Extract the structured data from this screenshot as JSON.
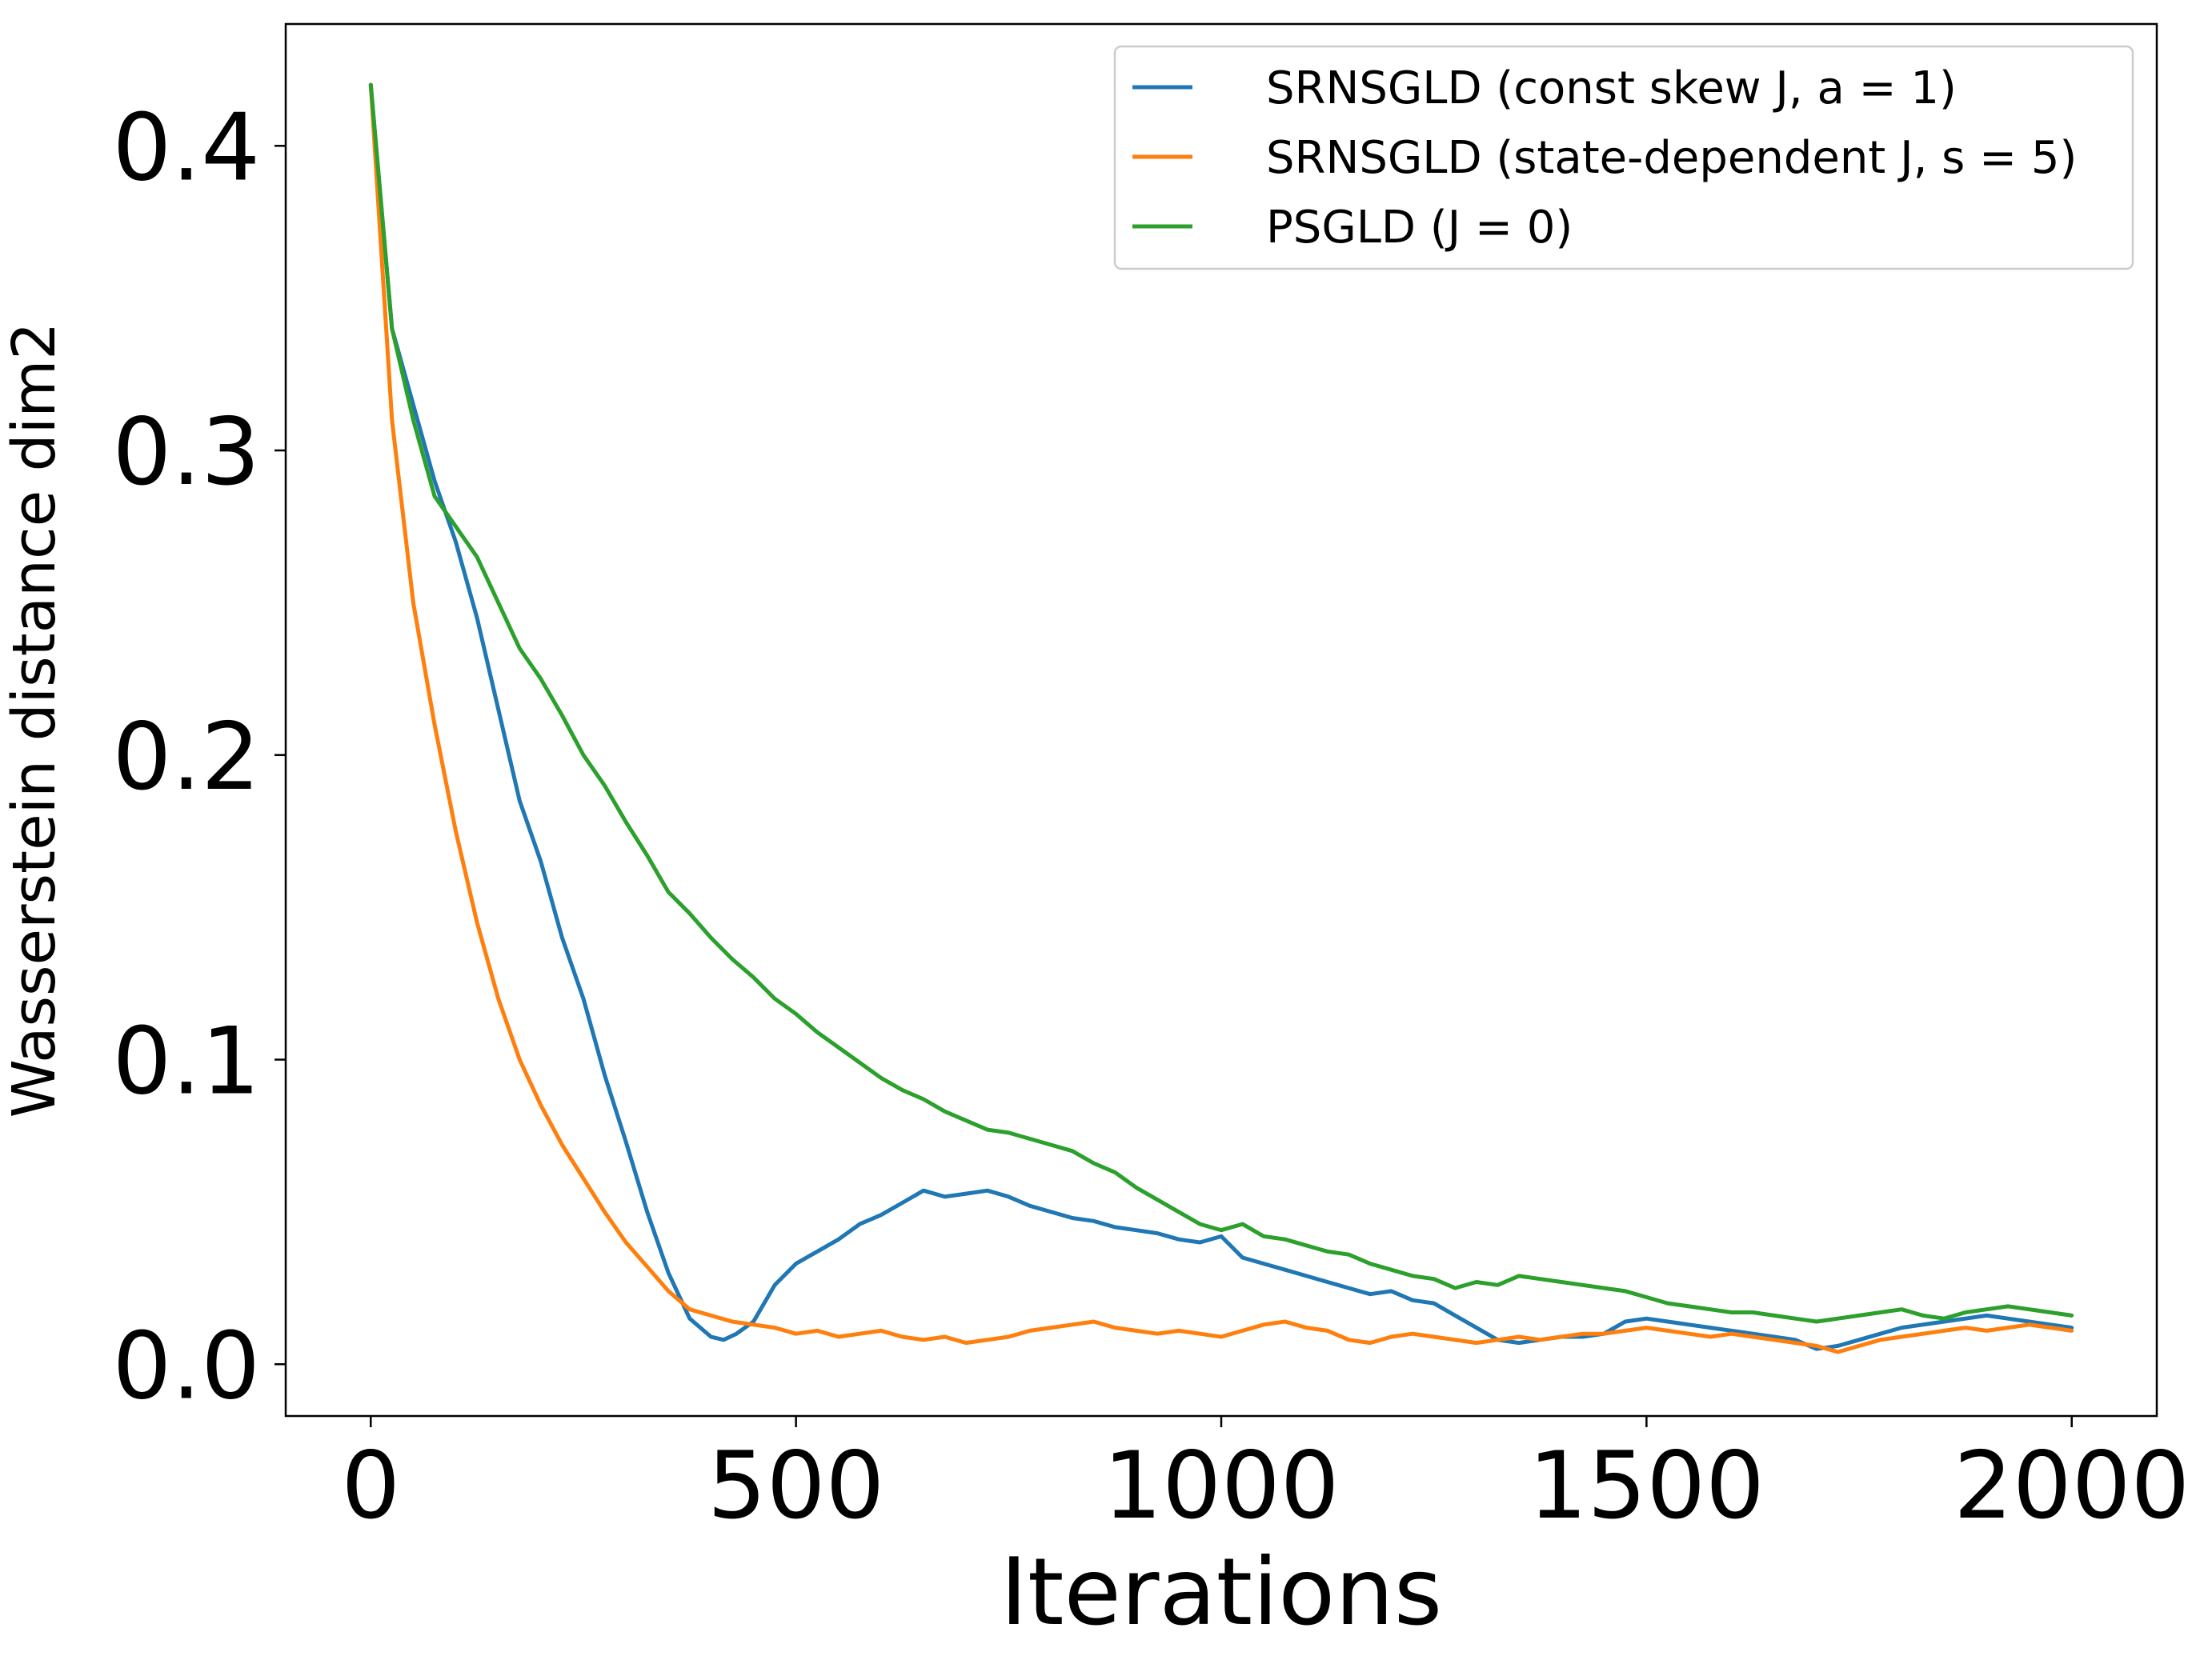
{
  "chart_data": {
    "type": "line",
    "title": "",
    "xlabel": "Iterations",
    "ylabel": "Wasserstein distance dim2",
    "xlim": [
      -100,
      2100
    ],
    "ylim": [
      -0.017,
      0.44
    ],
    "xticks": [
      0,
      500,
      1000,
      1500,
      2000
    ],
    "xtick_labels": [
      "0",
      "500",
      "1000",
      "1500",
      "2000"
    ],
    "yticks": [
      0.0,
      0.1,
      0.2,
      0.3,
      0.4
    ],
    "ytick_labels": [
      "0.0",
      "0.1",
      "0.2",
      "0.3",
      "0.4"
    ],
    "grid": false,
    "legend_position": "top-right",
    "series": [
      {
        "name": "SRNSGLD (const skew J, a = 1)",
        "color": "#1f77b4",
        "x": [
          0,
          25,
          50,
          75,
          100,
          125,
          150,
          175,
          200,
          225,
          250,
          275,
          300,
          325,
          350,
          375,
          400,
          415,
          430,
          450,
          475,
          500,
          525,
          550,
          575,
          600,
          625,
          650,
          675,
          700,
          725,
          750,
          775,
          800,
          825,
          850,
          875,
          900,
          925,
          950,
          975,
          1000,
          1025,
          1050,
          1075,
          1100,
          1125,
          1150,
          1175,
          1200,
          1225,
          1250,
          1275,
          1300,
          1325,
          1350,
          1375,
          1400,
          1425,
          1450,
          1475,
          1500,
          1525,
          1550,
          1575,
          1600,
          1625,
          1650,
          1675,
          1700,
          1725,
          1750,
          1775,
          1800,
          1825,
          1850,
          1875,
          1900,
          1925,
          1950,
          1975,
          2000
        ],
        "y": [
          0.42,
          0.34,
          0.315,
          0.29,
          0.27,
          0.245,
          0.215,
          0.185,
          0.165,
          0.14,
          0.12,
          0.095,
          0.073,
          0.05,
          0.03,
          0.015,
          0.009,
          0.008,
          0.01,
          0.014,
          0.026,
          0.033,
          0.037,
          0.041,
          0.046,
          0.049,
          0.053,
          0.057,
          0.055,
          0.056,
          0.057,
          0.055,
          0.052,
          0.05,
          0.048,
          0.047,
          0.045,
          0.044,
          0.043,
          0.041,
          0.04,
          0.042,
          0.035,
          0.033,
          0.031,
          0.029,
          0.027,
          0.025,
          0.023,
          0.024,
          0.021,
          0.02,
          0.016,
          0.012,
          0.008,
          0.007,
          0.008,
          0.009,
          0.009,
          0.01,
          0.014,
          0.015,
          0.014,
          0.013,
          0.012,
          0.011,
          0.01,
          0.009,
          0.008,
          0.005,
          0.006,
          0.008,
          0.01,
          0.012,
          0.013,
          0.014,
          0.015,
          0.016,
          0.015,
          0.014,
          0.013,
          0.012
        ]
      },
      {
        "name": "SRNSGLD (state-dependent J, s = 5)",
        "color": "#ff7f0e",
        "x": [
          0,
          25,
          50,
          75,
          100,
          125,
          150,
          175,
          200,
          225,
          250,
          275,
          300,
          325,
          350,
          375,
          400,
          425,
          450,
          475,
          500,
          525,
          550,
          575,
          600,
          625,
          650,
          675,
          700,
          725,
          750,
          775,
          800,
          825,
          850,
          875,
          900,
          925,
          950,
          975,
          1000,
          1025,
          1050,
          1075,
          1100,
          1125,
          1150,
          1175,
          1200,
          1225,
          1250,
          1275,
          1300,
          1325,
          1350,
          1375,
          1400,
          1425,
          1450,
          1475,
          1500,
          1525,
          1550,
          1575,
          1600,
          1625,
          1650,
          1675,
          1700,
          1725,
          1750,
          1775,
          1800,
          1825,
          1850,
          1875,
          1900,
          1925,
          1950,
          1975,
          2000
        ],
        "y": [
          0.42,
          0.31,
          0.25,
          0.21,
          0.175,
          0.145,
          0.12,
          0.1,
          0.085,
          0.072,
          0.061,
          0.05,
          0.04,
          0.032,
          0.024,
          0.018,
          0.016,
          0.014,
          0.013,
          0.012,
          0.01,
          0.011,
          0.009,
          0.01,
          0.011,
          0.009,
          0.008,
          0.009,
          0.007,
          0.008,
          0.009,
          0.011,
          0.012,
          0.013,
          0.014,
          0.012,
          0.011,
          0.01,
          0.011,
          0.01,
          0.009,
          0.011,
          0.013,
          0.014,
          0.012,
          0.011,
          0.008,
          0.007,
          0.009,
          0.01,
          0.009,
          0.008,
          0.007,
          0.008,
          0.009,
          0.008,
          0.009,
          0.01,
          0.01,
          0.011,
          0.012,
          0.011,
          0.01,
          0.009,
          0.01,
          0.009,
          0.008,
          0.007,
          0.006,
          0.004,
          0.006,
          0.008,
          0.009,
          0.01,
          0.011,
          0.012,
          0.011,
          0.012,
          0.013,
          0.012,
          0.011
        ]
      },
      {
        "name": "PSGLD (J = 0)",
        "color": "#2ca02c",
        "x": [
          0,
          25,
          50,
          75,
          100,
          125,
          150,
          175,
          200,
          225,
          250,
          275,
          300,
          325,
          350,
          375,
          400,
          425,
          450,
          475,
          500,
          525,
          550,
          575,
          600,
          625,
          650,
          675,
          700,
          725,
          750,
          775,
          800,
          825,
          850,
          875,
          900,
          925,
          950,
          975,
          1000,
          1025,
          1050,
          1075,
          1100,
          1125,
          1150,
          1175,
          1200,
          1225,
          1250,
          1275,
          1300,
          1325,
          1350,
          1375,
          1400,
          1425,
          1450,
          1475,
          1500,
          1525,
          1550,
          1575,
          1600,
          1625,
          1650,
          1675,
          1700,
          1725,
          1750,
          1775,
          1800,
          1825,
          1850,
          1875,
          1900,
          1925,
          1950,
          1975,
          2000
        ],
        "y": [
          0.42,
          0.34,
          0.31,
          0.285,
          0.275,
          0.265,
          0.25,
          0.235,
          0.225,
          0.213,
          0.2,
          0.19,
          0.178,
          0.167,
          0.155,
          0.148,
          0.14,
          0.133,
          0.127,
          0.12,
          0.115,
          0.109,
          0.104,
          0.099,
          0.094,
          0.09,
          0.087,
          0.083,
          0.08,
          0.077,
          0.076,
          0.074,
          0.072,
          0.07,
          0.066,
          0.063,
          0.058,
          0.054,
          0.05,
          0.046,
          0.044,
          0.046,
          0.042,
          0.041,
          0.039,
          0.037,
          0.036,
          0.033,
          0.031,
          0.029,
          0.028,
          0.025,
          0.027,
          0.026,
          0.029,
          0.028,
          0.027,
          0.026,
          0.025,
          0.024,
          0.022,
          0.02,
          0.019,
          0.018,
          0.017,
          0.017,
          0.016,
          0.015,
          0.014,
          0.015,
          0.016,
          0.017,
          0.018,
          0.016,
          0.015,
          0.017,
          0.018,
          0.019,
          0.018,
          0.017,
          0.016
        ]
      }
    ]
  }
}
